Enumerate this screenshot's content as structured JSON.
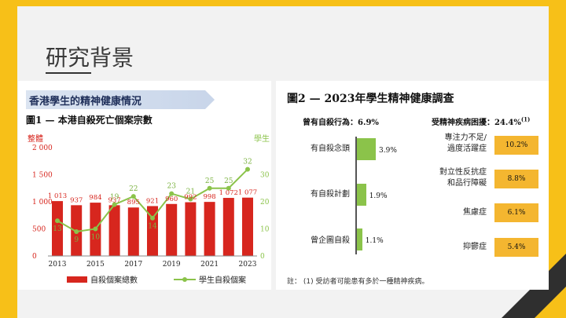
{
  "slide": {
    "title": "研究背景"
  },
  "left_panel": {
    "heading": "香港學生的精神健康情況",
    "figure_title": "圖1 — 本港自殺死亡個案宗數",
    "left_axis_title": "整體",
    "right_axis_title": "學生",
    "legend_bar": "自殺個案總數",
    "legend_line": "學生自殺個案"
  },
  "chart_data": {
    "type": "bar",
    "categories": [
      "2013",
      "2014",
      "2015",
      "2016",
      "2017",
      "2018",
      "2019",
      "2020",
      "2021",
      "2022",
      "2023"
    ],
    "x_tick_labels": [
      "2013",
      "2015",
      "2017",
      "2019",
      "2021",
      "2023"
    ],
    "series": [
      {
        "name": "自殺個案總數",
        "type": "bar",
        "axis": "left",
        "color": "#d7261e",
        "values": [
          1013,
          937,
          984,
          937,
          895,
          921,
          960,
          992,
          998,
          1072,
          1077
        ],
        "labels": [
          "1 013",
          "937",
          "984",
          "937",
          "895",
          "921",
          "960",
          "992",
          "998",
          "1 072",
          "1 077"
        ]
      },
      {
        "name": "學生自殺個案",
        "type": "line",
        "axis": "right",
        "color": "#8bc34a",
        "values": [
          13,
          9,
          10,
          19,
          22,
          14,
          23,
          21,
          25,
          25,
          32
        ],
        "labels": [
          "13",
          "9",
          "10",
          "19",
          "22",
          "14",
          "23",
          "21",
          "25",
          "25",
          "32"
        ]
      }
    ],
    "left_axis": {
      "ylim": [
        0,
        2000
      ],
      "ticks": [
        "0",
        "500",
        "1 000",
        "1 500",
        "2 000"
      ],
      "tick_values": [
        0,
        500,
        1000,
        1500,
        2000
      ]
    },
    "right_axis": {
      "ylim": [
        0,
        40
      ],
      "ticks": [
        "0",
        "10",
        "20",
        "30"
      ],
      "tick_values": [
        0,
        10,
        20,
        30
      ]
    }
  },
  "right_panel": {
    "figure_title": "圖2 — 2023年學生精神健康調查",
    "left_sub": "曾有自殺行為：6.9%",
    "right_sub": "受精神疾病困擾：24.4%",
    "right_sub_sup": "(1)",
    "behaviors": [
      {
        "label": "有自殺念頭",
        "value": 3.9,
        "pct": "3.9%"
      },
      {
        "label": "有自殺計劃",
        "value": 1.9,
        "pct": "1.9%"
      },
      {
        "label": "曾企圖自殺",
        "value": 1.1,
        "pct": "1.1%"
      }
    ],
    "illnesses": [
      {
        "label_line1": "專注力不足/",
        "label_line2": "過度活躍症",
        "pct": "10.2%"
      },
      {
        "label_line1": "對立性反抗症",
        "label_line2": "和品行障礙",
        "pct": "8.8%"
      },
      {
        "label_line1": "焦慮症",
        "label_line2": "",
        "pct": "6.1%"
      },
      {
        "label_line1": "抑鬱症",
        "label_line2": "",
        "pct": "5.4%"
      }
    ],
    "note": "註：  (1)   受訪者可能患有多於一種精神疾病。"
  }
}
